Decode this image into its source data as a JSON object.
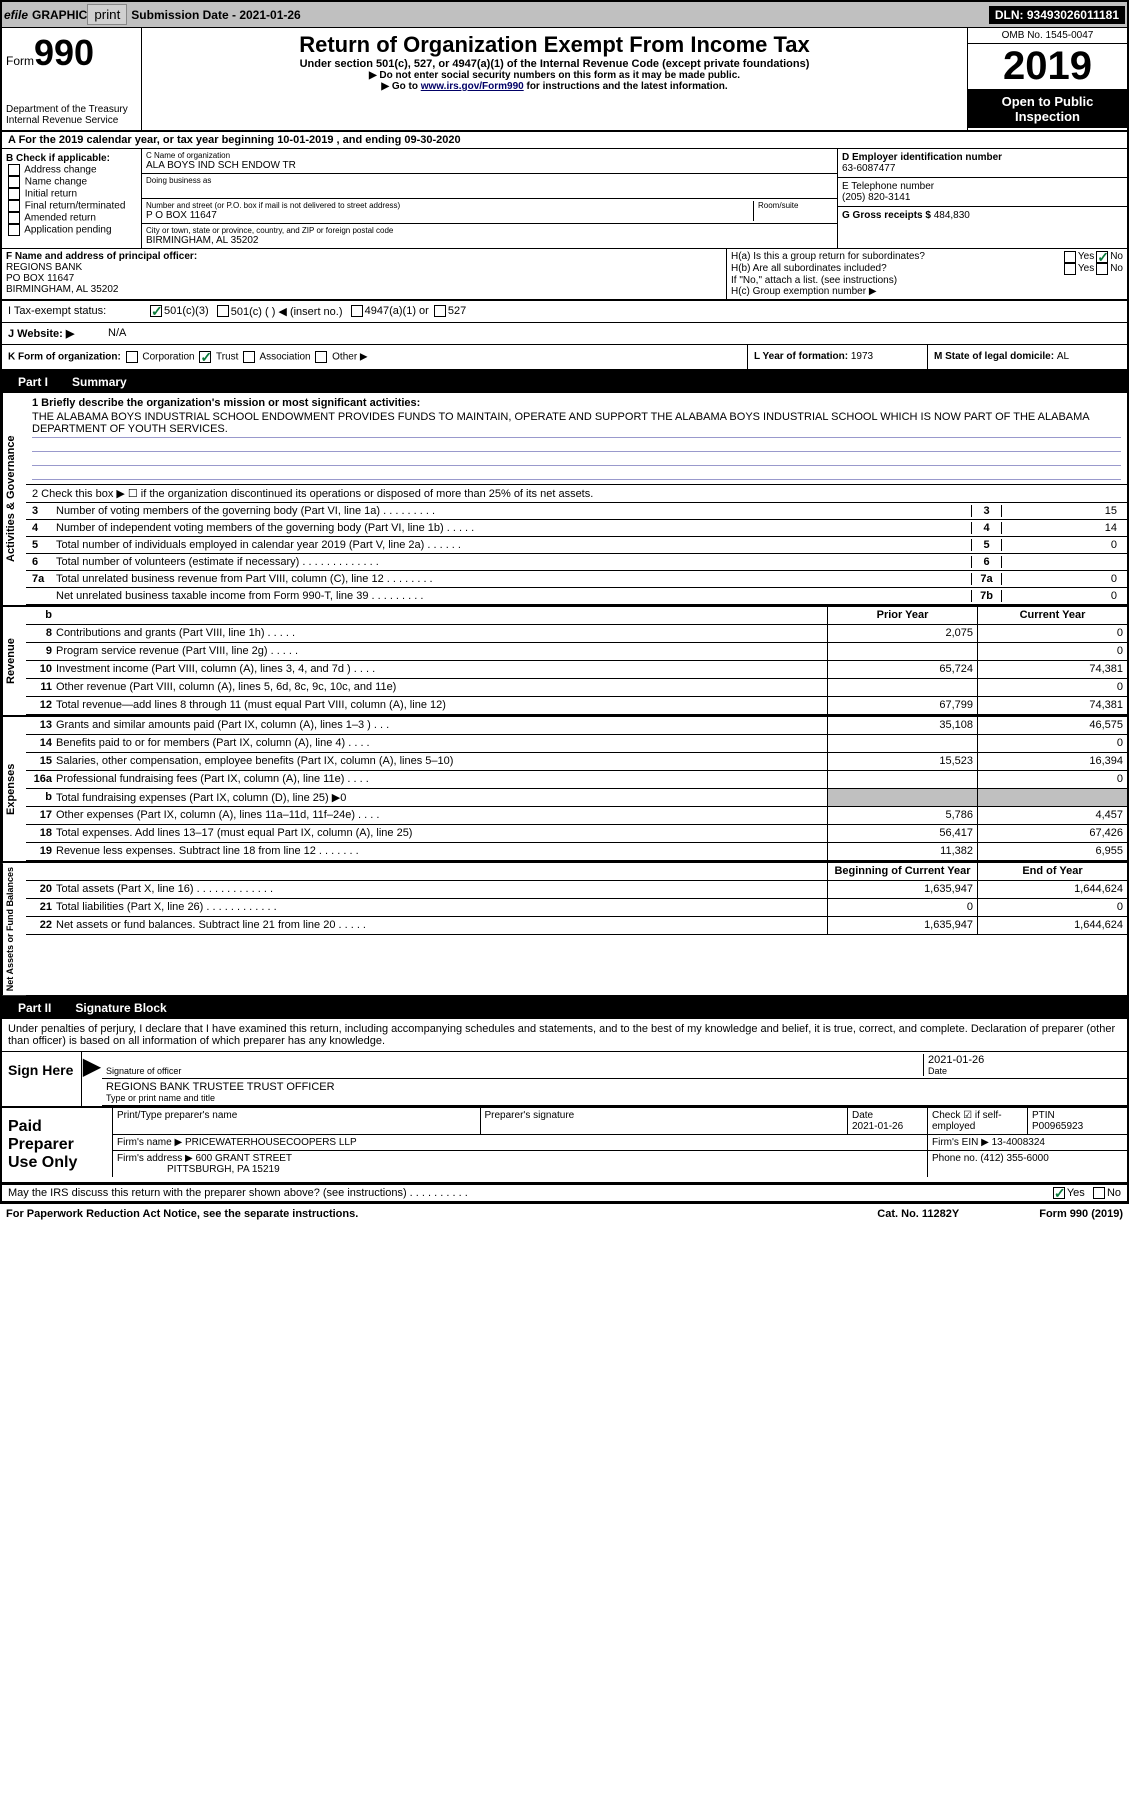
{
  "topbar": {
    "efile": "efile",
    "graphic": "GRAPHIC",
    "print": "print",
    "sub_label": "Submission Date - ",
    "sub_date": "2021-01-26",
    "dln": "DLN: 93493026011181"
  },
  "header": {
    "form": "Form",
    "num": "990",
    "dept": "Department of the Treasury\nInternal Revenue Service",
    "title": "Return of Organization Exempt From Income Tax",
    "sub": "Under section 501(c), 527, or 4947(a)(1) of the Internal Revenue Code (except private foundations)",
    "l2": "▶ Do not enter social security numbers on this form as it may be made public.",
    "l3a": "▶ Go to ",
    "l3link": "www.irs.gov/Form990",
    "l3b": " for instructions and the latest information.",
    "omb": "OMB No. 1545-0047",
    "year": "2019",
    "inspect": "Open to Public Inspection"
  },
  "rowA": "A For the 2019 calendar year, or tax year beginning 10-01-2019    , and ending 09-30-2020",
  "B": {
    "hdr": "B Check if applicable:",
    "items": [
      "Address change",
      "Name change",
      "Initial return",
      "Final return/terminated",
      "Amended return",
      "Application pending"
    ]
  },
  "C": {
    "name_lbl": "C Name of organization",
    "name": "ALA BOYS IND SCH ENDOW TR",
    "dba_lbl": "Doing business as",
    "addr_lbl": "Number and street (or P.O. box if mail is not delivered to street address)",
    "room_lbl": "Room/suite",
    "addr": "P O BOX 11647",
    "city_lbl": "City or town, state or province, country, and ZIP or foreign postal code",
    "city": "BIRMINGHAM, AL  35202"
  },
  "D": {
    "lbl": "D Employer identification number",
    "val": "63-6087477"
  },
  "E": {
    "lbl": "E Telephone number",
    "val": "(205) 820-3141"
  },
  "G": {
    "lbl": "G Gross receipts $ ",
    "val": "484,830"
  },
  "F": {
    "lbl": "F  Name and address of principal officer:",
    "v1": "REGIONS BANK",
    "v2": "PO BOX 11647",
    "v3": "BIRMINGHAM, AL  35202"
  },
  "H": {
    "a": "H(a)  Is this a group return for subordinates?",
    "b": "H(b)  Are all subordinates included?",
    "bnote": "If \"No,\" attach a list. (see instructions)",
    "c": "H(c)  Group exemption number ▶",
    "yes": "Yes",
    "no": "No"
  },
  "I": {
    "lbl": "I   Tax-exempt status:",
    "o1": "501(c)(3)",
    "o2": "501(c) (    ) ◀ (insert no.)",
    "o3": "4947(a)(1) or",
    "o4": "527"
  },
  "J": {
    "lbl": "J   Website: ▶",
    "val": "N/A"
  },
  "K": {
    "lbl": "K Form of organization:",
    "o1": "Corporation",
    "o2": "Trust",
    "o3": "Association",
    "o4": "Other ▶"
  },
  "L": {
    "lbl": "L Year of formation: ",
    "val": "1973"
  },
  "M": {
    "lbl": "M State of legal domicile: ",
    "val": "AL"
  },
  "partI": {
    "hdr": "Part I",
    "title": "Summary"
  },
  "sidelabels": {
    "ag": "Activities & Governance",
    "rev": "Revenue",
    "exp": "Expenses",
    "na": "Net Assets or Fund Balances"
  },
  "p1": {
    "l1a": "1  Briefly describe the organization's mission or most significant activities:",
    "l1b": "THE ALABAMA BOYS INDUSTRIAL SCHOOL ENDOWMENT PROVIDES FUNDS TO MAINTAIN, OPERATE AND SUPPORT THE ALABAMA BOYS INDUSTRIAL SCHOOL WHICH IS NOW PART OF THE ALABAMA DEPARTMENT OF YOUTH SERVICES.",
    "l2": "2   Check this box ▶ ☐  if the organization discontinued its operations or disposed of more than 25% of its net assets.",
    "rows_ag": [
      {
        "n": "3",
        "t": "Number of voting members of the governing body (Part VI, line 1a)  .   .   .   .   .   .   .   .   .",
        "box": "3",
        "v": "15"
      },
      {
        "n": "4",
        "t": "Number of independent voting members of the governing body (Part VI, line 1b)  .   .   .   .   .",
        "box": "4",
        "v": "14"
      },
      {
        "n": "5",
        "t": "Total number of individuals employed in calendar year 2019 (Part V, line 2a)  .   .   .   .   .   .",
        "box": "5",
        "v": "0"
      },
      {
        "n": "6",
        "t": "Total number of volunteers (estimate if necessary)   .   .   .   .   .   .   .   .   .   .   .   .   .",
        "box": "6",
        "v": ""
      },
      {
        "n": "7a",
        "t": "Total unrelated business revenue from Part VIII, column (C), line 12  .   .   .   .   .   .   .   .",
        "box": "7a",
        "v": "0"
      },
      {
        "n": "",
        "t": "Net unrelated business taxable income from Form 990-T, line 39   .   .   .   .   .   .   .   .   .",
        "box": "7b",
        "v": "0"
      }
    ],
    "fin_hdr_py": "Prior Year",
    "fin_hdr_cy": "Current Year",
    "rows_rev": [
      {
        "n": "8",
        "t": "Contributions and grants (Part VIII, line 1h)   .   .   .   .   .",
        "py": "2,075",
        "cy": "0"
      },
      {
        "n": "9",
        "t": "Program service revenue (Part VIII, line 2g)   .   .   .   .   .",
        "py": "",
        "cy": "0"
      },
      {
        "n": "10",
        "t": "Investment income (Part VIII, column (A), lines 3, 4, and 7d )   .   .   .   .",
        "py": "65,724",
        "cy": "74,381"
      },
      {
        "n": "11",
        "t": "Other revenue (Part VIII, column (A), lines 5, 6d, 8c, 9c, 10c, and 11e)",
        "py": "",
        "cy": "0"
      },
      {
        "n": "12",
        "t": "Total revenue—add lines 8 through 11 (must equal Part VIII, column (A), line 12)",
        "py": "67,799",
        "cy": "74,381"
      }
    ],
    "rows_exp": [
      {
        "n": "13",
        "t": "Grants and similar amounts paid (Part IX, column (A), lines 1–3 )  .   .   .",
        "py": "35,108",
        "cy": "46,575"
      },
      {
        "n": "14",
        "t": "Benefits paid to or for members (Part IX, column (A), line 4)  .   .   .   .",
        "py": "",
        "cy": "0"
      },
      {
        "n": "15",
        "t": "Salaries, other compensation, employee benefits (Part IX, column (A), lines 5–10)",
        "py": "15,523",
        "cy": "16,394"
      },
      {
        "n": "16a",
        "t": "Professional fundraising fees (Part IX, column (A), line 11e)  .   .   .   .",
        "py": "",
        "cy": "0"
      },
      {
        "n": "b",
        "t": "Total fundraising expenses (Part IX, column (D), line 25) ▶0",
        "py": "grey",
        "cy": "grey"
      },
      {
        "n": "17",
        "t": "Other expenses (Part IX, column (A), lines 11a–11d, 11f–24e)  .   .   .   .",
        "py": "5,786",
        "cy": "4,457"
      },
      {
        "n": "18",
        "t": "Total expenses. Add lines 13–17 (must equal Part IX, column (A), line 25)",
        "py": "56,417",
        "cy": "67,426"
      },
      {
        "n": "19",
        "t": "Revenue less expenses. Subtract line 18 from line 12  .   .   .   .   .   .   .",
        "py": "11,382",
        "cy": "6,955"
      }
    ],
    "na_hdr_py": "Beginning of Current Year",
    "na_hdr_cy": "End of Year",
    "rows_na": [
      {
        "n": "20",
        "t": "Total assets (Part X, line 16)  .   .   .   .   .   .   .   .   .   .   .   .   .",
        "py": "1,635,947",
        "cy": "1,644,624"
      },
      {
        "n": "21",
        "t": "Total liabilities (Part X, line 26)  .   .   .   .   .   .   .   .   .   .   .   .",
        "py": "0",
        "cy": "0"
      },
      {
        "n": "22",
        "t": "Net assets or fund balances. Subtract line 21 from line 20  .   .   .   .   .",
        "py": "1,635,947",
        "cy": "1,644,624"
      }
    ]
  },
  "partII": {
    "hdr": "Part II",
    "title": "Signature Block"
  },
  "sig": {
    "decl": "Under penalties of perjury, I declare that I have examined this return, including accompanying schedules and statements, and to the best of my knowledge and belief, it is true, correct, and complete. Declaration of preparer (other than officer) is based on all information of which preparer has any knowledge.",
    "sign_here": "Sign Here",
    "sig_officer": "Signature of officer",
    "date": "2021-01-26",
    "date_lbl": "Date",
    "name": "REGIONS BANK TRUSTEE  TRUST OFFICER",
    "name_lbl": "Type or print name and title"
  },
  "prep": {
    "lbl": "Paid Preparer Use Only",
    "h_name": "Print/Type preparer's name",
    "h_sig": "Preparer's signature",
    "h_date": "Date",
    "date": "2021-01-26",
    "h_check": "Check ☑ if self-employed",
    "h_ptin": "PTIN",
    "ptin": "P00965923",
    "firm_lbl": "Firm's name    ▶",
    "firm": "PRICEWATERHOUSECOOPERS LLP",
    "ein_lbl": "Firm's EIN ▶",
    "ein": "13-4008324",
    "addr_lbl": "Firm's address ▶",
    "addr1": "600 GRANT STREET",
    "addr2": "PITTSBURGH, PA  15219",
    "phone_lbl": "Phone no.",
    "phone": "(412) 355-6000"
  },
  "discuss": {
    "t": "May the IRS discuss this return with the preparer shown above? (see instructions)   .   .   .   .   .   .   .   .   .   .",
    "yes": "Yes",
    "no": "No"
  },
  "footer": {
    "l": "For Paperwork Reduction Act Notice, see the separate instructions.",
    "m": "Cat. No. 11282Y",
    "r": "Form 990 (2019)"
  }
}
